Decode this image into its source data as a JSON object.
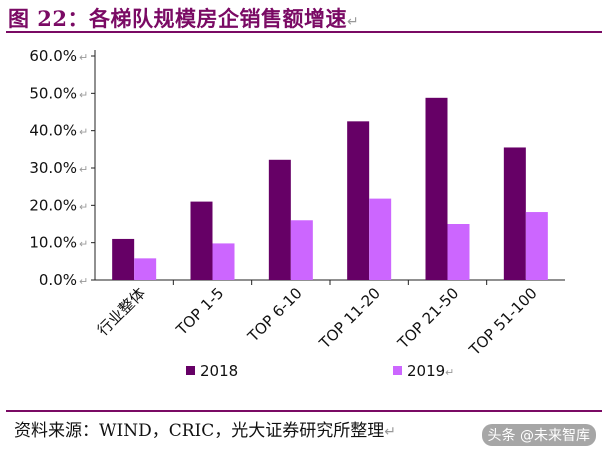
{
  "title": "图 22：各梯队规模房企销售额增速",
  "paragraph_mark": "↵",
  "source": "资料来源：WIND，CRIC，光大证券研究所整理",
  "watermark": "头条 @未来智库",
  "colors": {
    "accent": "#7a0a64",
    "series_2018": "#660066",
    "series_2019": "#cc66ff"
  },
  "chart_data": {
    "type": "bar",
    "categories": [
      "行业整体",
      "TOP 1-5",
      "TOP 6-10",
      "TOP 11-20",
      "TOP 21-50",
      "TOP 51-100"
    ],
    "series": [
      {
        "name": "2018",
        "values": [
          11.0,
          21.0,
          32.2,
          42.5,
          48.8,
          35.5
        ]
      },
      {
        "name": "2019",
        "values": [
          5.8,
          9.8,
          16.0,
          21.8,
          15.0,
          18.2
        ]
      }
    ],
    "y_ticks": [
      "0.0%",
      "10.0%",
      "20.0%",
      "30.0%",
      "40.0%",
      "50.0%",
      "60.0%"
    ],
    "ylim": [
      0,
      60
    ],
    "legend_position": "bottom",
    "grid": false
  }
}
